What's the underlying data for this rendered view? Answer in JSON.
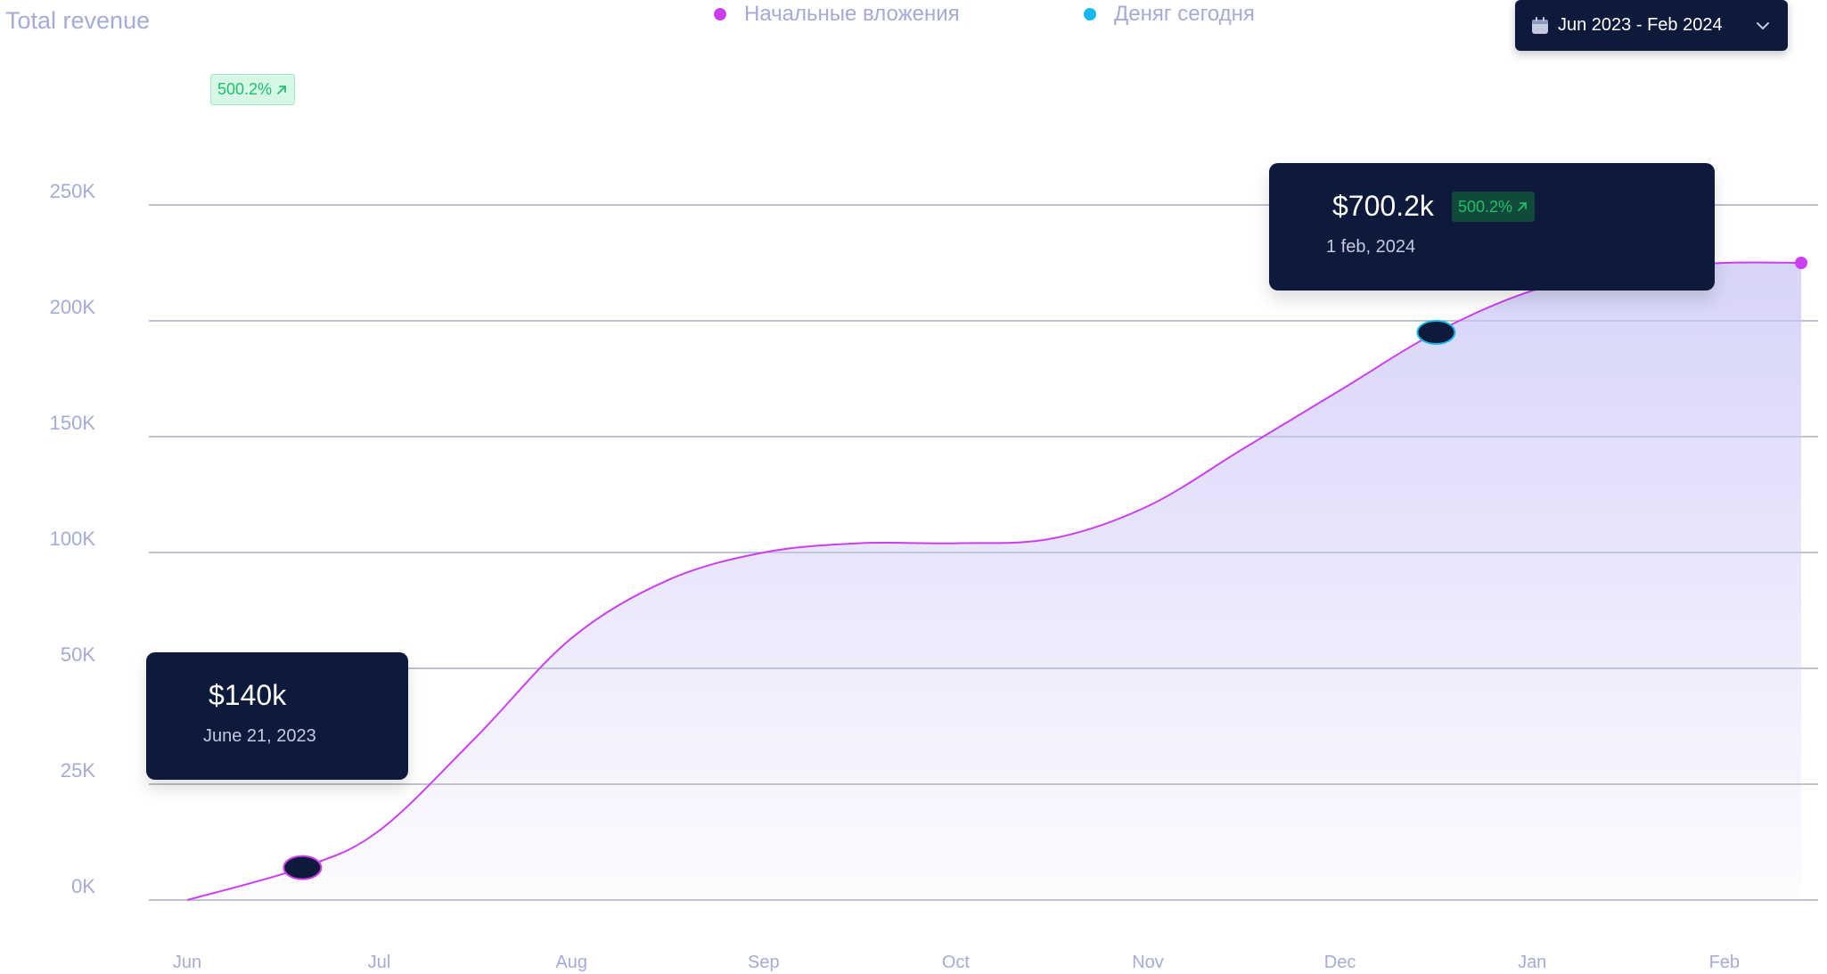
{
  "header": {
    "title": "Total revenue",
    "date_range": "Jun 2023 - Feb 2024",
    "growth_badge": "500.2%"
  },
  "legend": [
    {
      "label": "Начальные вложения",
      "color": "#cc3ff0"
    },
    {
      "label": "Деняг сегодня",
      "color": "#16b8ee"
    }
  ],
  "tooltips": [
    {
      "value": "$140k",
      "date": "June 21, 2023"
    },
    {
      "value": "$700.2k",
      "date": "1 feb, 2024",
      "badge": "500.2%"
    }
  ],
  "icons": {
    "calendar": "calendar-icon",
    "chevron": "chevron-down-icon",
    "arrow": "arrow-up-right-icon"
  },
  "colors": {
    "line": "#cc3ff0",
    "marker_fill": "#0e1a3b",
    "marker_stroke_1": "#cc3ff0",
    "marker_stroke_2": "#16b8ee",
    "area": "#c9c5f6",
    "badge_green": "#1fbf6b",
    "dark": "#0e1a3b"
  },
  "chart_data": {
    "type": "area",
    "x": [
      "Jun",
      "Jul",
      "Aug",
      "Sep",
      "Oct",
      "Nov",
      "Dec",
      "Jan",
      "Feb"
    ],
    "y_ticks": [
      "0K",
      "25K",
      "50K",
      "100K",
      "150K",
      "200K",
      "250K"
    ],
    "grid": true,
    "series": [
      {
        "name": "Начальные вложения",
        "points": [
          {
            "month": 0.0,
            "value": 0
          },
          {
            "month": 0.6,
            "value": 7
          },
          {
            "month": 1.0,
            "value": 15
          },
          {
            "month": 1.5,
            "value": 35
          },
          {
            "month": 2.0,
            "value": 63
          },
          {
            "month": 2.5,
            "value": 88
          },
          {
            "month": 3.0,
            "value": 100
          },
          {
            "month": 3.5,
            "value": 104
          },
          {
            "month": 4.0,
            "value": 104
          },
          {
            "month": 4.5,
            "value": 106
          },
          {
            "month": 5.0,
            "value": 120
          },
          {
            "month": 5.5,
            "value": 145
          },
          {
            "month": 6.0,
            "value": 170
          },
          {
            "month": 6.5,
            "value": 195
          },
          {
            "month": 7.0,
            "value": 213
          },
          {
            "month": 7.5,
            "value": 222
          },
          {
            "month": 8.0,
            "value": 225
          },
          {
            "month": 8.4,
            "value": 225
          }
        ]
      }
    ],
    "markers": [
      {
        "month": 0.6,
        "value": 7
      },
      {
        "month": 6.5,
        "value": 195
      }
    ]
  }
}
